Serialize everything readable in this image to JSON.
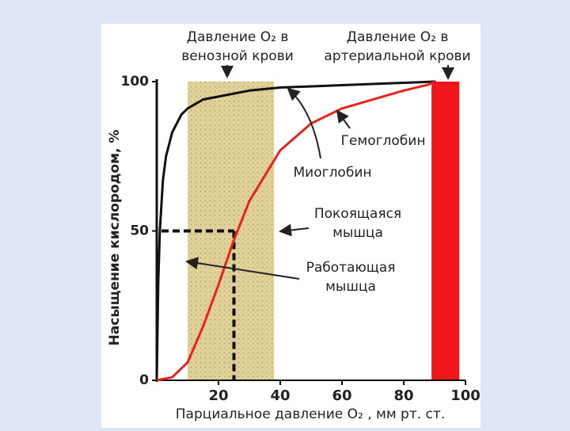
{
  "chart_data": {
    "type": "line",
    "y_axis_label": "Насыщение кислородом, %",
    "x_axis_label": "Парциальное давление O₂ , мм рт. ст.",
    "xlim": [
      0,
      100
    ],
    "ylim": [
      0,
      100
    ],
    "xticks": [
      20,
      40,
      60,
      80,
      100
    ],
    "yticks": [
      0,
      50,
      100
    ],
    "series": [
      {
        "name": "Миоглобин",
        "color": "#111111",
        "x": [
          0,
          0.5,
          1,
          2,
          3,
          5,
          8,
          10,
          15,
          20,
          30,
          40,
          90
        ],
        "values": [
          0,
          33,
          50,
          67,
          75,
          83,
          89,
          91,
          94,
          95,
          97,
          98,
          100
        ]
      },
      {
        "name": "Гемоглобин",
        "color": "#e8231e",
        "x": [
          0,
          5,
          10,
          15,
          20,
          25,
          30,
          40,
          50,
          60,
          70,
          80,
          88,
          90
        ],
        "values": [
          0,
          1,
          6,
          18,
          32,
          47,
          60,
          77,
          86,
          91,
          94,
          97,
          99,
          100
        ]
      }
    ],
    "shaded_regions": [
      {
        "xlim": [
          10,
          38
        ],
        "color": "#d9c98f"
      },
      {
        "xlim": [
          89,
          98
        ],
        "color": "#f0161a"
      }
    ],
    "guide": {
      "x": 25,
      "y": 50
    },
    "annotations": [
      {
        "lines": [
          "Давление O₂ в",
          "венозной крови"
        ]
      },
      {
        "lines": [
          "Давление O₂ в",
          "артериальной крови"
        ]
      },
      {
        "lines": [
          "Гемоглобин"
        ]
      },
      {
        "lines": [
          "Миоглобин"
        ]
      },
      {
        "lines": [
          "Покоящаяся",
          "мышца"
        ]
      },
      {
        "lines": [
          "Работающая",
          "мышца"
        ]
      }
    ]
  }
}
